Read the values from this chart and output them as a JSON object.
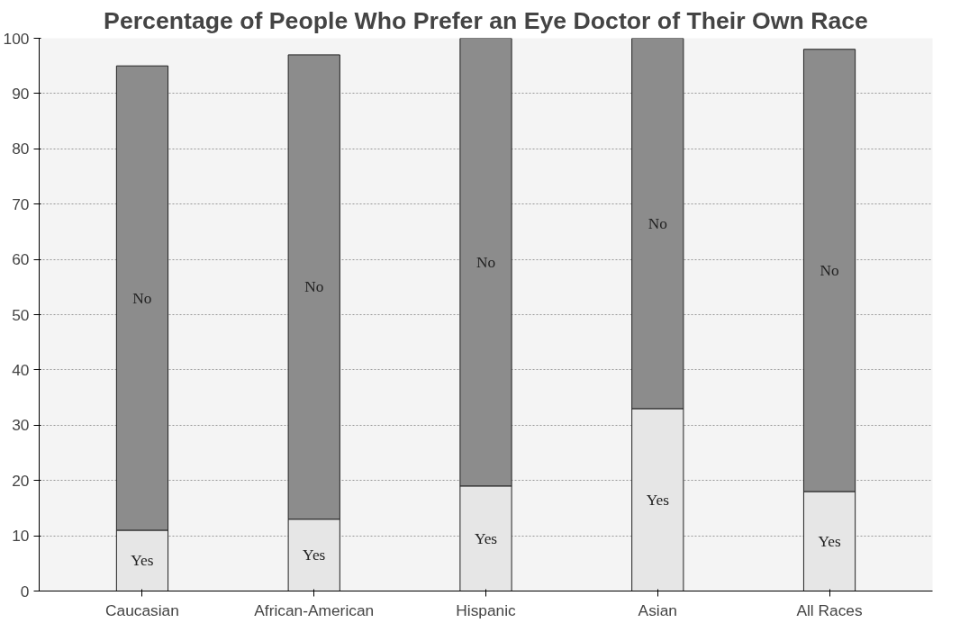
{
  "chart_data": {
    "type": "bar",
    "title": "Percentage of People Who Prefer an Eye Doctor of Their Own Race",
    "categories": [
      "Caucasian",
      "African-American",
      "Hispanic",
      "Asian",
      "All Races"
    ],
    "stacked": true,
    "series": [
      {
        "name": "Yes",
        "color": "#e6e6e6",
        "values": [
          11,
          13,
          19,
          33,
          18
        ]
      },
      {
        "name": "No",
        "color": "#8c8c8c",
        "values": [
          84,
          84,
          81,
          67,
          80
        ]
      }
    ],
    "ylim": [
      0,
      100
    ],
    "yticks": [
      0,
      10,
      20,
      30,
      40,
      50,
      60,
      70,
      80,
      90,
      100
    ],
    "grid": "y",
    "legend": false
  }
}
